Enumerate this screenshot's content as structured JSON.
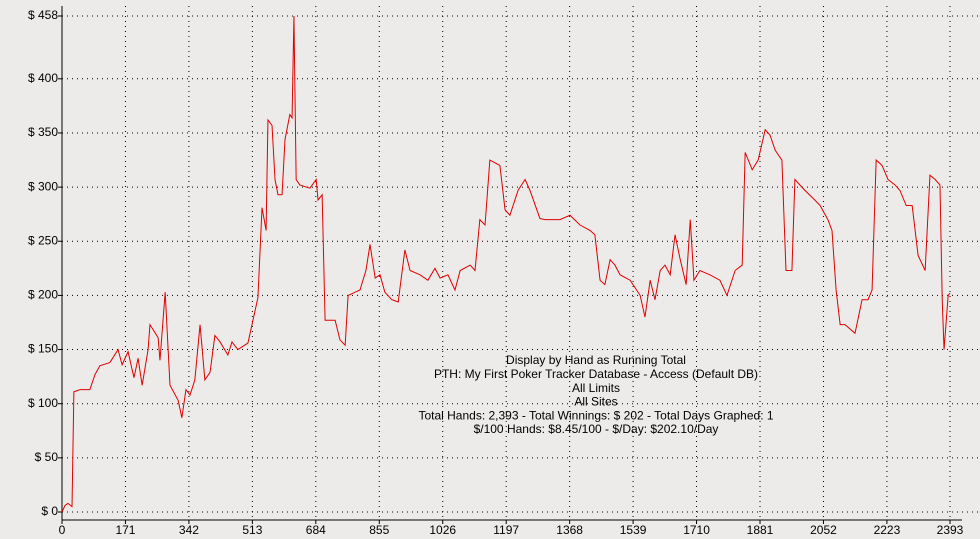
{
  "chart_data": {
    "type": "line",
    "color": "#e00000",
    "grid": true,
    "xlim": [
      0,
      2393
    ],
    "xticks": [
      0,
      171,
      342,
      513,
      684,
      855,
      1026,
      1197,
      1368,
      1539,
      1710,
      1881,
      2052,
      2223,
      2393
    ],
    "ylim": [
      0,
      458
    ],
    "yticks": [
      {
        "value": 0,
        "label": "$ 0"
      },
      {
        "value": 50,
        "label": "$ 50"
      },
      {
        "value": 100,
        "label": "$ 100"
      },
      {
        "value": 150,
        "label": "$ 150"
      },
      {
        "value": 200,
        "label": "$ 200"
      },
      {
        "value": 250,
        "label": "$ 250"
      },
      {
        "value": 300,
        "label": "$ 300"
      },
      {
        "value": 350,
        "label": "$ 350"
      },
      {
        "value": 400,
        "label": "$ 400"
      },
      {
        "value": 458,
        "label": "$ 458"
      }
    ],
    "annotations": [
      "Display by Hand as Running Total",
      "PTH: My First Poker Tracker Database - Access (Default DB)",
      "All Limits",
      "All Sites",
      "Total Hands: 2,393 - Total Winnings: $ 202 - Total Days Graphed: 1",
      "$/100 Hands: $8.45/100 - $/Day: $202.10/Day"
    ],
    "x": [
      0,
      8,
      16,
      27,
      32,
      49,
      75,
      89,
      102,
      129,
      151,
      162,
      178,
      194,
      205,
      216,
      232,
      237,
      259,
      264,
      278,
      291,
      313,
      323,
      334,
      345,
      358,
      372,
      385,
      399,
      412,
      426,
      447,
      458,
      474,
      501,
      512,
      528,
      539,
      550,
      555,
      566,
      574,
      582,
      593,
      601,
      614,
      620,
      625,
      631,
      641,
      668,
      685,
      690,
      701,
      709,
      736,
      749,
      763,
      771,
      790,
      803,
      819,
      830,
      844,
      857,
      870,
      889,
      906,
      924,
      938,
      965,
      986,
      1005,
      1019,
      1040,
      1059,
      1073,
      1100,
      1113,
      1126,
      1140,
      1153,
      1180,
      1194,
      1207,
      1229,
      1248,
      1261,
      1288,
      1302,
      1342,
      1369,
      1396,
      1423,
      1436,
      1450,
      1463,
      1477,
      1490,
      1504,
      1531,
      1558,
      1571,
      1585,
      1598,
      1612,
      1625,
      1639,
      1652,
      1666,
      1682,
      1693,
      1703,
      1719,
      1746,
      1773,
      1792,
      1814,
      1833,
      1841,
      1860,
      1876,
      1895,
      1908,
      1922,
      1940,
      1951,
      1967,
      1975,
      2002,
      2029,
      2043,
      2064,
      2075,
      2086,
      2097,
      2110,
      2137,
      2156,
      2172,
      2183,
      2194,
      2210,
      2226,
      2245,
      2258,
      2275,
      2291,
      2307,
      2326,
      2339,
      2353,
      2366,
      2372,
      2377,
      2388,
      2393
    ],
    "values": [
      0,
      6,
      8,
      5,
      111,
      113,
      113,
      127,
      135,
      138,
      150,
      136,
      148,
      124,
      142,
      117,
      150,
      173,
      161,
      140,
      203,
      117,
      103,
      87,
      113,
      108,
      122,
      173,
      122,
      129,
      163,
      157,
      145,
      157,
      150,
      156,
      173,
      198,
      281,
      260,
      362,
      357,
      307,
      293,
      293,
      344,
      367,
      364,
      458,
      307,
      302,
      299,
      307,
      288,
      293,
      177,
      177,
      159,
      154,
      200,
      203,
      205,
      223,
      247,
      216,
      219,
      203,
      196,
      194,
      242,
      223,
      219,
      214,
      225,
      216,
      219,
      205,
      223,
      228,
      223,
      270,
      265,
      325,
      320,
      279,
      274,
      297,
      307,
      297,
      271,
      270,
      270,
      274,
      265,
      260,
      256,
      214,
      210,
      233,
      228,
      219,
      214,
      200,
      180,
      214,
      196,
      223,
      228,
      219,
      256,
      233,
      210,
      270,
      214,
      223,
      219,
      214,
      200,
      223,
      228,
      332,
      316,
      325,
      353,
      348,
      334,
      325,
      223,
      223,
      307,
      297,
      288,
      283,
      270,
      260,
      205,
      173,
      173,
      165,
      196,
      196,
      205,
      325,
      320,
      307,
      302,
      297,
      283,
      283,
      237,
      223,
      311,
      307,
      302,
      196,
      150,
      200,
      202
    ]
  }
}
